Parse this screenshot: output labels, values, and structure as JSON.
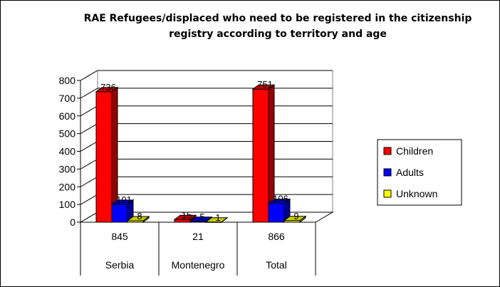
{
  "chart_data": {
    "type": "bar",
    "title_lines": [
      "RAE Refugees/displaced who need to be registered in the citizenship",
      "registry according to territory and age"
    ],
    "xlabel": "",
    "ylabel": "",
    "ylim": [
      0,
      800
    ],
    "y_ticks": [
      0,
      100,
      200,
      300,
      400,
      500,
      600,
      700,
      800
    ],
    "categories": [
      "Serbia",
      "Montenegro",
      "Total"
    ],
    "category_totals": [
      "845",
      "21",
      "866"
    ],
    "series": [
      {
        "name": "Children",
        "color": "#ff0000",
        "values": [
          736,
          15,
          751
        ]
      },
      {
        "name": "Adults",
        "color": "#0000ff",
        "values": [
          101,
          5,
          106
        ]
      },
      {
        "name": "Unknown",
        "color": "#ffff00",
        "values": [
          8,
          1,
          9
        ]
      }
    ],
    "grid": true,
    "three_d": true,
    "legend_position": "right"
  }
}
